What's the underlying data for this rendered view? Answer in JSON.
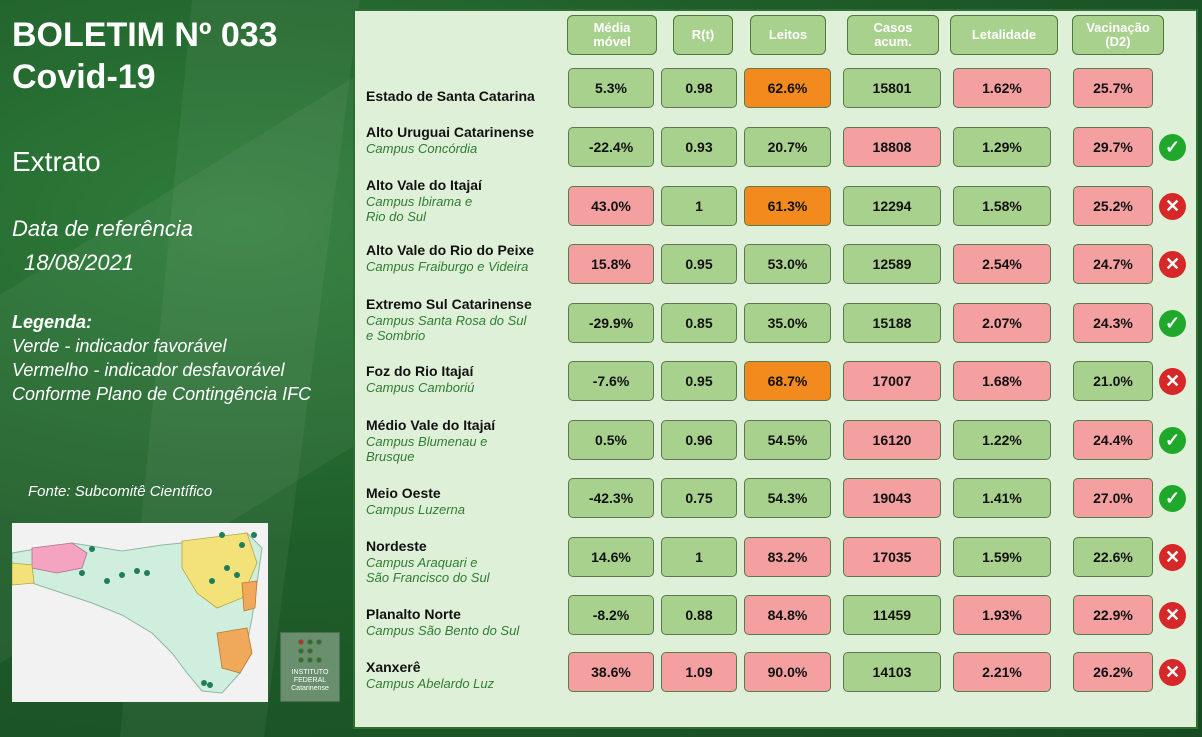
{
  "bulletin": {
    "line1": "BOLETIM Nº 033",
    "line2": "Covid-19"
  },
  "extrato": "Extrato",
  "reference": {
    "label": "Data de referência",
    "date": "18/08/2021"
  },
  "legend": {
    "title": "Legenda:",
    "lines": [
      "Verde - indicador favorável",
      "Vermelho - indicador desfavorável",
      "Conforme Plano de Contingência IFC"
    ]
  },
  "source": "Fonte: Subcomitê Científico",
  "logo": {
    "line1": "INSTITUTO",
    "line2": "FEDERAL",
    "line3": "Catarinense"
  },
  "colors": {
    "green": "#a9d18e",
    "red": "#f4a0a0",
    "orange": "#f28a1d",
    "ok": "#20a82a",
    "no": "#d62828"
  },
  "headers": [
    "Média\nmóvel",
    "R(t)",
    "Leitos",
    "Casos\nacum.",
    "Letalidade",
    "Vacinação\n(D2)"
  ],
  "rows": [
    {
      "name": "Estado de Santa Catarina",
      "sub": "",
      "status": "",
      "cells": [
        [
          "5.3%",
          "green"
        ],
        [
          "0.98",
          "green"
        ],
        [
          "62.6%",
          "orange"
        ],
        [
          "15801",
          "green"
        ],
        [
          "1.62%",
          "red"
        ],
        [
          "25.7%",
          "red"
        ]
      ]
    },
    {
      "name": "Alto Uruguai Catarinense",
      "sub": "Campus Concórdia",
      "status": "ok",
      "cells": [
        [
          "-22.4%",
          "green"
        ],
        [
          "0.93",
          "green"
        ],
        [
          "20.7%",
          "green"
        ],
        [
          "18808",
          "red"
        ],
        [
          "1.29%",
          "green"
        ],
        [
          "29.7%",
          "red"
        ]
      ]
    },
    {
      "name": "Alto Vale do Itajaí",
      "sub": "Campus Ibirama e\nRio do Sul",
      "status": "no",
      "cells": [
        [
          "43.0%",
          "red"
        ],
        [
          "1",
          "green"
        ],
        [
          "61.3%",
          "orange"
        ],
        [
          "12294",
          "green"
        ],
        [
          "1.58%",
          "green"
        ],
        [
          "25.2%",
          "red"
        ]
      ]
    },
    {
      "name": "Alto Vale do Rio do Peixe",
      "sub": "Campus Fraiburgo e Videira",
      "status": "no",
      "cells": [
        [
          "15.8%",
          "red"
        ],
        [
          "0.95",
          "green"
        ],
        [
          "53.0%",
          "green"
        ],
        [
          "12589",
          "green"
        ],
        [
          "2.54%",
          "red"
        ],
        [
          "24.7%",
          "red"
        ]
      ]
    },
    {
      "name": "Extremo Sul Catarinense",
      "sub": "Campus Santa Rosa do Sul\ne Sombrio",
      "status": "ok",
      "cells": [
        [
          "-29.9%",
          "green"
        ],
        [
          "0.85",
          "green"
        ],
        [
          "35.0%",
          "green"
        ],
        [
          "15188",
          "green"
        ],
        [
          "2.07%",
          "red"
        ],
        [
          "24.3%",
          "red"
        ]
      ]
    },
    {
      "name": "Foz do Rio Itajaí",
      "sub": "Campus Camboriú",
      "status": "no",
      "cells": [
        [
          "-7.6%",
          "green"
        ],
        [
          "0.95",
          "green"
        ],
        [
          "68.7%",
          "orange"
        ],
        [
          "17007",
          "red"
        ],
        [
          "1.68%",
          "red"
        ],
        [
          "21.0%",
          "green"
        ]
      ]
    },
    {
      "name": "Médio Vale do Itajaí",
      "sub": "Campus Blumenau e\nBrusque",
      "status": "ok",
      "cells": [
        [
          "0.5%",
          "green"
        ],
        [
          "0.96",
          "green"
        ],
        [
          "54.5%",
          "green"
        ],
        [
          "16120",
          "red"
        ],
        [
          "1.22%",
          "green"
        ],
        [
          "24.4%",
          "red"
        ]
      ]
    },
    {
      "name": "Meio Oeste",
      "sub": "Campus Luzerna",
      "status": "ok",
      "cells": [
        [
          "-42.3%",
          "green"
        ],
        [
          "0.75",
          "green"
        ],
        [
          "54.3%",
          "green"
        ],
        [
          "19043",
          "red"
        ],
        [
          "1.41%",
          "green"
        ],
        [
          "27.0%",
          "red"
        ]
      ]
    },
    {
      "name": "Nordeste",
      "sub": "Campus Araquari e\nSão Francisco do Sul",
      "status": "no",
      "cells": [
        [
          "14.6%",
          "green"
        ],
        [
          "1",
          "green"
        ],
        [
          "83.2%",
          "red"
        ],
        [
          "17035",
          "red"
        ],
        [
          "1.59%",
          "green"
        ],
        [
          "22.6%",
          "green"
        ]
      ]
    },
    {
      "name": "Planalto Norte",
      "sub": "Campus São Bento do Sul",
      "status": "no",
      "cells": [
        [
          "-8.2%",
          "green"
        ],
        [
          "0.88",
          "green"
        ],
        [
          "84.8%",
          "red"
        ],
        [
          "11459",
          "green"
        ],
        [
          "1.93%",
          "red"
        ],
        [
          "22.9%",
          "red"
        ]
      ]
    },
    {
      "name": "Xanxerê",
      "sub": "Campus Abelardo Luz",
      "status": "no",
      "cells": [
        [
          "38.6%",
          "red"
        ],
        [
          "1.09",
          "red"
        ],
        [
          "90.0%",
          "red"
        ],
        [
          "14103",
          "green"
        ],
        [
          "2.21%",
          "red"
        ],
        [
          "26.2%",
          "red"
        ]
      ]
    }
  ]
}
